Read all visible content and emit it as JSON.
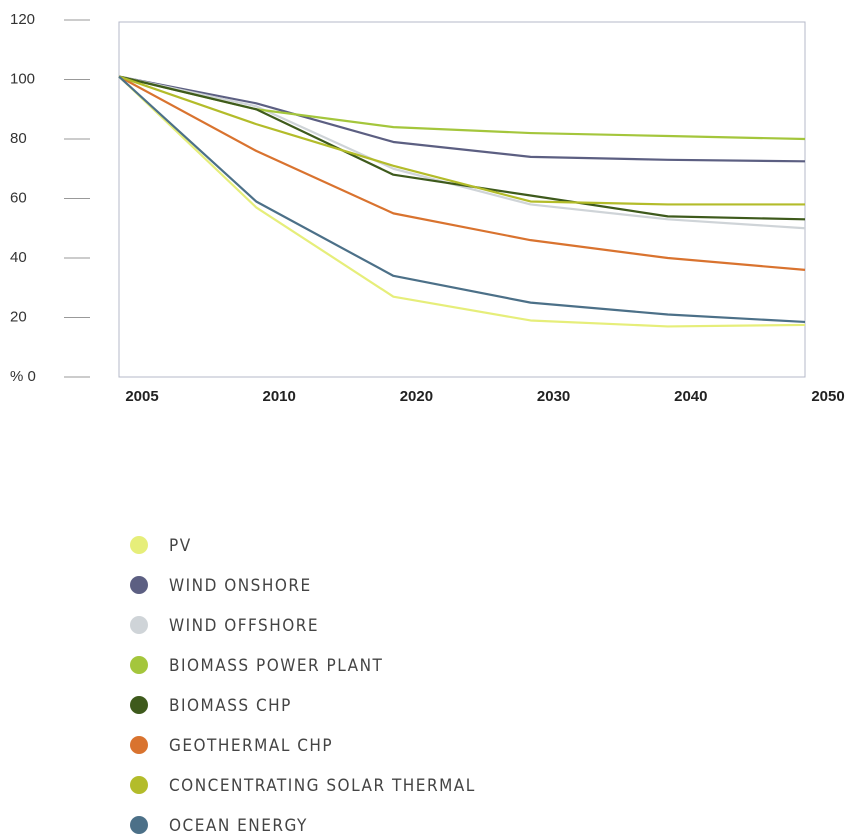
{
  "chart_data": {
    "type": "line",
    "categories": [
      "2005",
      "2010",
      "2020",
      "2030",
      "2040",
      "2050"
    ],
    "ylim": [
      0,
      120
    ],
    "yticks": [
      {
        "value": 0,
        "label": "% 0"
      },
      20,
      40,
      60,
      80,
      100,
      120
    ],
    "grid": false,
    "series": [
      {
        "name": "PV",
        "color": "#e6ee7a",
        "values": [
          101,
          57,
          27,
          19,
          17,
          17.5
        ]
      },
      {
        "name": "WIND ONSHORE",
        "color": "#5c5f82",
        "values": [
          101,
          92,
          79,
          74,
          73,
          72.5
        ]
      },
      {
        "name": "WIND OFFSHORE",
        "color": "#cfd4d8",
        "values": [
          101,
          91,
          70,
          58,
          53,
          50
        ]
      },
      {
        "name": "BIOMASS POWER PLANT",
        "color": "#a4c63c",
        "values": [
          101,
          90,
          84,
          82,
          81,
          80
        ]
      },
      {
        "name": "BIOMASS CHP",
        "color": "#3e5a1c",
        "values": [
          101,
          90,
          68,
          61,
          54,
          53
        ]
      },
      {
        "name": "GEOTHERMAL CHP",
        "color": "#d9732f",
        "values": [
          101,
          76,
          55,
          46,
          40,
          36
        ]
      },
      {
        "name": "CONCENTRATING SOLAR THERMAL",
        "color": "#b3bc2a",
        "values": [
          101,
          85,
          71,
          59,
          58,
          58
        ]
      },
      {
        "name": "OCEAN ENERGY",
        "color": "#4c7088",
        "values": [
          101,
          59,
          34,
          25,
          21,
          18.5
        ]
      }
    ]
  }
}
